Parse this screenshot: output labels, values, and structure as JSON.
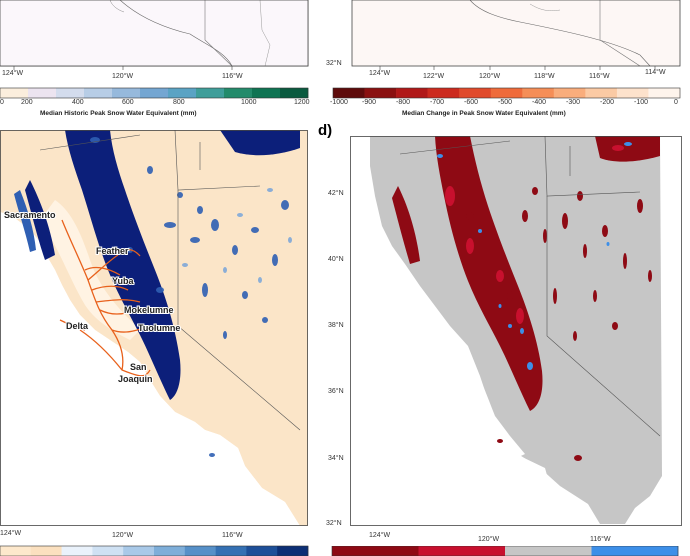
{
  "panels": {
    "a": {
      "lon_ticks": [
        "124°W",
        "120°W",
        "116°W"
      ],
      "colorbar": {
        "ticks": [
          "0",
          "200",
          "400",
          "600",
          "800",
          "1000",
          "1200"
        ],
        "title": "Median Historic Peak Snow Water Equivalent (mm)",
        "colors": [
          "#fbeedd",
          "#ece4f0",
          "#d3dced",
          "#b7cde6",
          "#96b9dc",
          "#74a6d2",
          "#5aa3c4",
          "#3f9e9a",
          "#238b6b",
          "#0f7453",
          "#0a5a3f"
        ]
      }
    },
    "b": {
      "lat_ticks": [
        "32°N"
      ],
      "lon_ticks": [
        "124°W",
        "122°W",
        "120°W",
        "118°W",
        "116°W",
        "114°W"
      ],
      "colorbar": {
        "ticks": [
          "-1000",
          "-900",
          "-800",
          "-700",
          "-600",
          "-500",
          "-400",
          "-300",
          "-200",
          "-100",
          "0"
        ],
        "title": "Median Change in Peak Snow Water Equivalent (mm)",
        "colors": [
          "#5e0b0b",
          "#8a1010",
          "#b01818",
          "#cc2a1e",
          "#e04a2b",
          "#ef6b3b",
          "#f58e57",
          "#f9ad7c",
          "#fbcaa4",
          "#fde2cc",
          "#fef4ec"
        ]
      }
    },
    "c": {
      "lon_ticks": [
        "124°W",
        "120°W",
        "116°W"
      ],
      "places": [
        "Sacramento",
        "Feather",
        "Yuba",
        "Mokelumne",
        "Delta",
        "Tuolumne",
        "San",
        "Joaquin"
      ],
      "colors": {
        "snow_dark": "#0c1f7a",
        "snow_mid": "#2f5fb3",
        "snow_light": "#7fa8d8",
        "land": "#fbe5c8",
        "river": "#e8611c"
      },
      "colorbar_colors": [
        "#fde8cc",
        "#fbe0bf",
        "#eaf2fb",
        "#cfe1f3",
        "#a9c9e8",
        "#7eaed9",
        "#5690c8",
        "#3470b3",
        "#1d4f98",
        "#0c2f75"
      ]
    },
    "d": {
      "letter": "d)",
      "lat_ticks": [
        "42°N",
        "40°N",
        "38°N",
        "36°N",
        "34°N",
        "32°N"
      ],
      "lon_ticks": [
        "124°W",
        "120°W",
        "116°W"
      ],
      "colors": {
        "loss_dark": "#8e0a14",
        "loss": "#c8102e",
        "gain": "#3d8fe8",
        "nosnow": "#c6c6c6"
      },
      "colorbar_colors": [
        "#8e0a14",
        "#c8102e",
        "#c6c6c6",
        "#3d8fe8"
      ]
    }
  }
}
